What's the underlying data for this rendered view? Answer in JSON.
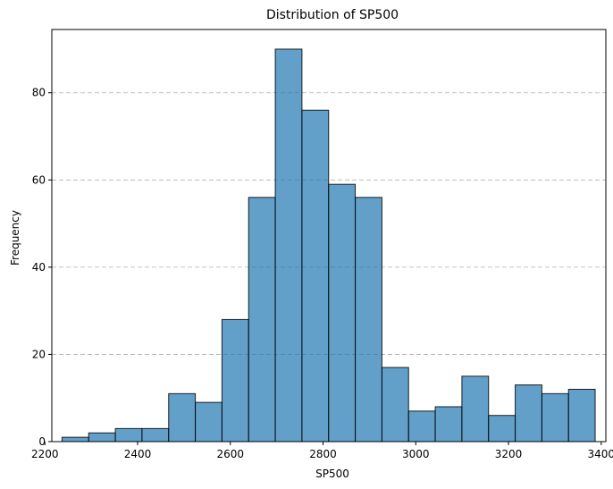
{
  "chart_data": {
    "type": "bar",
    "subtype": "histogram",
    "title": "Distribution of SP500",
    "xlabel": "SP500",
    "ylabel": "Frequency",
    "xlim": [
      2215,
      3410
    ],
    "ylim": [
      0,
      94.5
    ],
    "x_ticks": [
      2200,
      2400,
      2600,
      2800,
      3000,
      3200,
      3400
    ],
    "y_ticks": [
      0,
      20,
      40,
      60,
      80
    ],
    "grid": "y-dashed",
    "bin_edges": [
      2237,
      2294.5,
      2352,
      2409.5,
      2467,
      2524.5,
      2582,
      2639.5,
      2697,
      2754.5,
      2812,
      2869.5,
      2927,
      2984.5,
      3042,
      3099.5,
      3157,
      3214.5,
      3272,
      3329.5,
      3387
    ],
    "values": [
      1,
      2,
      3,
      3,
      11,
      9,
      28,
      56,
      90,
      76,
      59,
      56,
      17,
      7,
      8,
      15,
      6,
      13,
      11,
      12
    ],
    "colors": {
      "bar_fill": "#1f77b4",
      "bar_opacity": 0.7,
      "bar_edge": "#000000",
      "grid": "#b0b0b0"
    }
  }
}
